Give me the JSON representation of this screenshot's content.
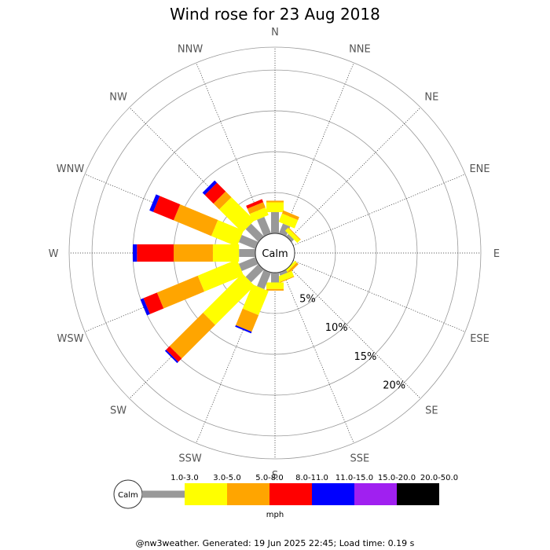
{
  "chart_data": {
    "type": "wind-rose",
    "title": "Wind rose for 23 Aug 2018",
    "directions": [
      "N",
      "NNE",
      "NE",
      "ENE",
      "E",
      "ESE",
      "SE",
      "SSE",
      "S",
      "SSW",
      "SW",
      "WSW",
      "W",
      "WNW",
      "NW",
      "NNW"
    ],
    "ring_values": [
      5,
      10,
      15,
      20
    ],
    "ring_labels": [
      "5%",
      "10%",
      "15%",
      "20%"
    ],
    "r_max": 22.8,
    "calm_label": "Calm",
    "unit": "mph",
    "speed_bins": [
      {
        "label": "1.0-3.0",
        "color": "#999999"
      },
      {
        "label": "3.0-5.0",
        "color": "#ffff00"
      },
      {
        "label": "5.0-8.0",
        "color": "#ffa500"
      },
      {
        "label": "8.0-11.0",
        "color": "#ff0000"
      },
      {
        "label": "11.0-15.0",
        "color": "#0000ff"
      },
      {
        "label": "15.0-20.0",
        "color": "#a020f0"
      },
      {
        "label": "20.0-50.0",
        "color": "#000000"
      }
    ],
    "cumulative_percent": {
      "N": [
        2.6,
        3.8,
        4.0,
        4.0,
        4.0,
        4.0,
        4.0
      ],
      "NNE": [
        1.3,
        2.4,
        2.8,
        2.8,
        2.8,
        2.8,
        2.8
      ],
      "NE": [
        0.4,
        0.9,
        1.0,
        1.0,
        1.0,
        1.0,
        1.0
      ],
      "ENE": [
        0.0,
        0.0,
        0.0,
        0.0,
        0.0,
        0.0,
        0.0
      ],
      "E": [
        0.0,
        0.0,
        0.0,
        0.0,
        0.0,
        0.0,
        0.0
      ],
      "ESE": [
        0.0,
        0.0,
        0.0,
        0.0,
        0.0,
        0.0,
        0.0
      ],
      "SE": [
        0.0,
        0.3,
        0.6,
        0.6,
        0.6,
        0.6,
        0.6
      ],
      "SSE": [
        0.4,
        1.1,
        1.2,
        1.2,
        1.2,
        1.2,
        1.2
      ],
      "S": [
        1.2,
        2.0,
        2.2,
        2.2,
        2.2,
        2.2,
        2.2
      ],
      "SSW": [
        2.2,
        5.4,
        7.6,
        7.6,
        7.8,
        7.8,
        7.8
      ],
      "SW": [
        2.2,
        9.0,
        14.8,
        15.4,
        15.6,
        15.6,
        15.6
      ],
      "WSW": [
        2.2,
        7.4,
        12.8,
        14.6,
        15.0,
        15.0,
        15.0
      ],
      "W": [
        2.0,
        5.2,
        10.0,
        14.5,
        15.0,
        15.0,
        15.0
      ],
      "WNW": [
        2.2,
        5.6,
        10.6,
        13.3,
        13.8,
        13.8,
        13.8
      ],
      "NW": [
        2.2,
        6.2,
        7.2,
        8.7,
        9.1,
        9.1,
        9.1
      ],
      "NNW": [
        2.2,
        3.2,
        3.9,
        4.3,
        4.3,
        4.3,
        4.3
      ]
    }
  },
  "footer": "@nw3weather. Generated: 19 Jun 2025 22:45; Load time: 0.19 s"
}
